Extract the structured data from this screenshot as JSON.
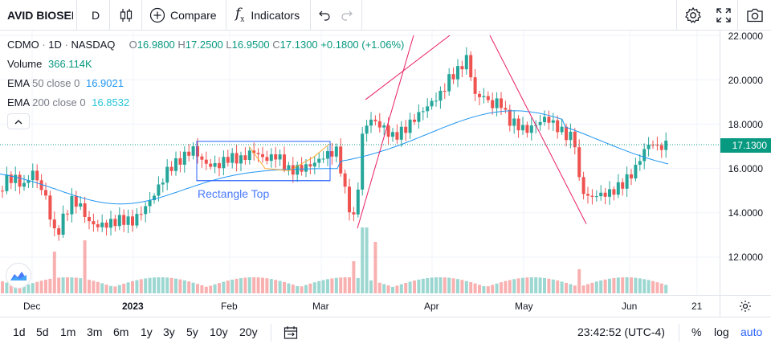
{
  "toolbar": {
    "symbol": "AVID BIOSERVICES",
    "interval": "D",
    "compare_label": "Compare",
    "indicators_label": "Indicators"
  },
  "legend": {
    "ticker": "CDMO",
    "interval": "1D",
    "exchange": "NASDAQ",
    "ohlc": {
      "o_label": "O",
      "o": "16.9800",
      "h_label": "H",
      "h": "17.2500",
      "l_label": "L",
      "l": "16.9500",
      "c_label": "C",
      "c": "17.1300",
      "change": "+0.1800 (+1.06%)"
    },
    "volume_label": "Volume",
    "volume_value": "366.114K",
    "ema1_label": "EMA",
    "ema1_params": "50 close 0",
    "ema1_value": "16.9021",
    "ema2_label": "EMA",
    "ema2_params": "200 close 0",
    "ema2_value": "16.8532"
  },
  "annotation": {
    "rectangle_label": "Rectangle Top"
  },
  "price_axis": {
    "labels": [
      "22.0000",
      "20.0000",
      "18.0000",
      "16.0000",
      "14.0000",
      "12.0000"
    ],
    "current_price": "17.1300"
  },
  "time_axis": {
    "labels": [
      "Dec",
      "2023",
      "Feb",
      "Mar",
      "Apr",
      "May",
      "Jun",
      "21"
    ]
  },
  "bottom_bar": {
    "ranges": [
      "1d",
      "5d",
      "1m",
      "3m",
      "6m",
      "1y",
      "3y",
      "5y",
      "10y",
      "20y"
    ],
    "clock": "23:42:52 (UTC-4)",
    "percent_label": "%",
    "log_label": "log",
    "auto_label": "auto"
  },
  "colors": {
    "up": "#26a69a",
    "down": "#ef5350",
    "ema50": "#2196f3",
    "ema200": "#26c6da",
    "channel": "#e91e63",
    "accent": "#2962ff"
  },
  "icons": [
    "candles-icon",
    "plus-circle-icon",
    "fx-icon",
    "undo-icon",
    "redo-icon",
    "gear-icon",
    "fullscreen-icon",
    "camera-icon",
    "chevron-up-icon",
    "logo-icon",
    "calendar-icon",
    "axis-settings-icon"
  ]
}
